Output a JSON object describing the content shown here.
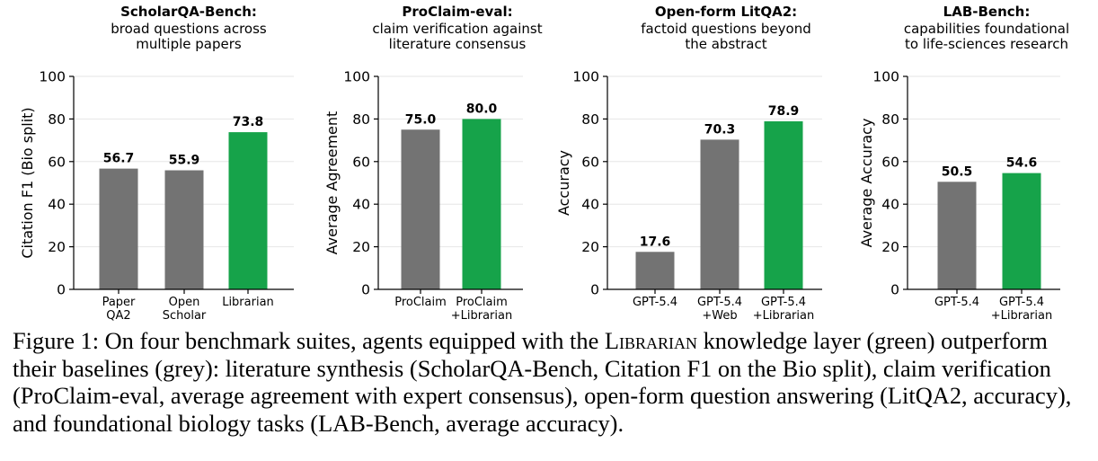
{
  "colors": {
    "baseline": "#737373",
    "librarian": "#16a34a"
  },
  "chart_data": [
    {
      "type": "bar",
      "title": "ScholarQA-Bench:",
      "subtitle": [
        "broad questions across",
        "multiple papers"
      ],
      "ylabel": "Citation F1 (Bio split)",
      "ylim": [
        0,
        100
      ],
      "yticks": [
        "0",
        "20",
        "40",
        "60",
        "80",
        "100"
      ],
      "categories": [
        [
          "Paper",
          "QA2"
        ],
        [
          "Open",
          "Scholar"
        ],
        [
          "Librarian"
        ]
      ],
      "values": [
        56.7,
        55.9,
        73.8
      ],
      "value_labels": [
        "56.7",
        "55.9",
        "73.8"
      ],
      "bar_colors": [
        "baseline",
        "baseline",
        "librarian"
      ]
    },
    {
      "type": "bar",
      "title": "ProClaim-eval:",
      "subtitle": [
        "claim verification against",
        "literature consensus"
      ],
      "ylabel": "Average Agreement",
      "ylim": [
        0,
        100
      ],
      "yticks": [
        "0",
        "20",
        "40",
        "60",
        "80",
        "100"
      ],
      "categories": [
        [
          "ProClaim"
        ],
        [
          "ProClaim",
          "+Librarian"
        ]
      ],
      "values": [
        75.0,
        80.0
      ],
      "value_labels": [
        "75.0",
        "80.0"
      ],
      "bar_colors": [
        "baseline",
        "librarian"
      ]
    },
    {
      "type": "bar",
      "title": "Open-form LitQA2:",
      "subtitle": [
        "factoid questions beyond",
        "the abstract"
      ],
      "ylabel": "Accuracy",
      "ylim": [
        0,
        100
      ],
      "yticks": [
        "0",
        "20",
        "40",
        "60",
        "80",
        "100"
      ],
      "categories": [
        [
          "GPT-5.4"
        ],
        [
          "GPT-5.4",
          "+Web"
        ],
        [
          "GPT-5.4",
          "+Librarian"
        ]
      ],
      "values": [
        17.6,
        70.3,
        78.9
      ],
      "value_labels": [
        "17.6",
        "70.3",
        "78.9"
      ],
      "bar_colors": [
        "baseline",
        "baseline",
        "librarian"
      ]
    },
    {
      "type": "bar",
      "title": "LAB-Bench:",
      "subtitle": [
        "capabilities foundational",
        "to life-sciences research"
      ],
      "ylabel": "Average Accuracy",
      "ylim": [
        0,
        100
      ],
      "yticks": [
        "0",
        "20",
        "40",
        "60",
        "80",
        "100"
      ],
      "categories": [
        [
          "GPT-5.4"
        ],
        [
          "GPT-5.4",
          "+Librarian"
        ]
      ],
      "values": [
        50.5,
        54.6
      ],
      "value_labels": [
        "50.5",
        "54.6"
      ],
      "bar_colors": [
        "baseline",
        "librarian"
      ]
    }
  ],
  "caption": {
    "prefix": "Figure 1: On four benchmark suites, agents equipped with the ",
    "librarian": "Librarian",
    "rest": " knowledge layer (green) outperform their baselines (grey): literature synthesis (ScholarQA-Bench, Citation F1 on the Bio split), claim verification (ProClaim-eval, average agreement with expert consensus), open-form question answering (LitQA2, accuracy), and foundational biology tasks (LAB-Bench, average accuracy)."
  }
}
